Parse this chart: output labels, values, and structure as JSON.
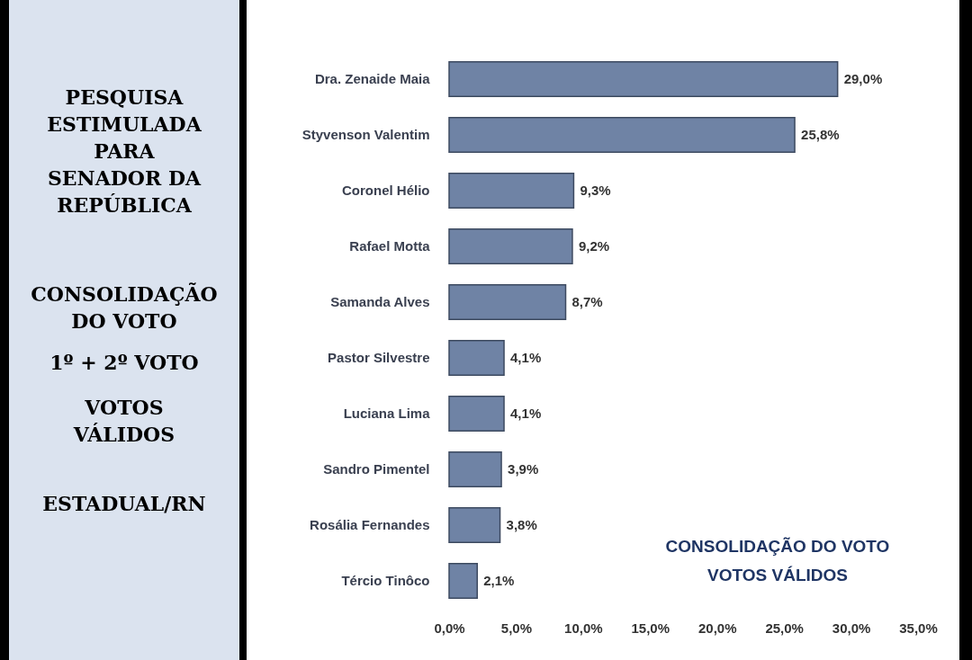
{
  "chart_data": {
    "type": "bar",
    "orientation": "horizontal",
    "title": "PESQUISA ESTIMULADA PARA SENADOR DA REPÚBLICA",
    "annotations": [
      "CONSOLIDAÇÃO DO VOTO",
      "1º + 2º VOTO",
      "VOTOS VÁLIDOS",
      "ESTADUAL/RN",
      "CONSOLIDAÇÃO DO VOTO VOTOS VÁLIDOS"
    ],
    "categories": [
      "Dra. Zenaide Maia",
      "Styvenson Valentim",
      "Coronel Hélio",
      "Rafael Motta",
      "Samanda Alves",
      "Pastor Silvestre",
      "Luciana Lima",
      "Sandro Pimentel",
      "Rosália Fernandes",
      "Tércio Tinôco"
    ],
    "values": [
      29.0,
      25.8,
      9.3,
      9.2,
      8.7,
      4.1,
      4.1,
      3.9,
      3.8,
      2.1
    ],
    "value_labels": [
      "29,0%",
      "25,8%",
      "9,3%",
      "9,2%",
      "8,7%",
      "4,1%",
      "4,1%",
      "3,9%",
      "3,8%",
      "2,1%"
    ],
    "color": "#6f83a5",
    "xlim": [
      0,
      35
    ],
    "xticks": [
      {
        "value": 0,
        "label": "0,0%"
      },
      {
        "value": 5,
        "label": "5,0%"
      },
      {
        "value": 10,
        "label": "10,0%"
      },
      {
        "value": 15,
        "label": "15,0%"
      },
      {
        "value": 20,
        "label": "20,0%"
      },
      {
        "value": 25,
        "label": "25,0%"
      },
      {
        "value": 30,
        "label": "30,0%"
      },
      {
        "value": 35,
        "label": "35,0%"
      }
    ],
    "grid": false
  }
}
